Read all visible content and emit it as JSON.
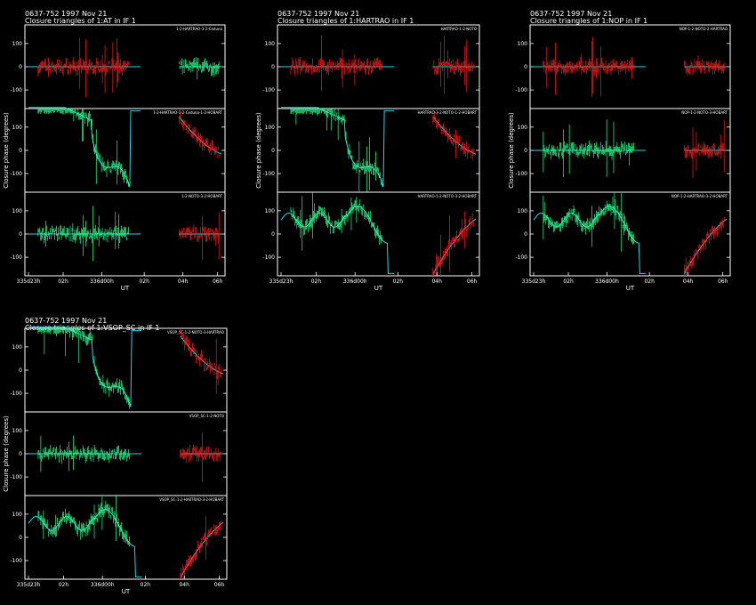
{
  "chart_data": [
    {
      "type": "scatter",
      "header_line1": "0637-752   1997 Nov 21",
      "header_line2": "Closure triangles of 1:AT in IF 1",
      "ylabel": "Closure phase   (degrees)",
      "xlabel": "UT",
      "ylim": [
        -180,
        180
      ],
      "yticks": [
        "100",
        "0",
        "-100"
      ],
      "xticks": [
        "335d23h",
        "02h",
        "336d00h",
        "02h",
        "04h",
        "06h"
      ],
      "panels": [
        {
          "label": "1-2-HARTRAO-3-2-Ceduna",
          "model": "flat",
          "level": 0,
          "region_a": "red",
          "region_b": "green"
        },
        {
          "label": "1-2-HARTRAO-3-2-Ceduna-1-2-HOBART",
          "model": "wave",
          "level": -40,
          "region_a": "green",
          "region_b": "red"
        },
        {
          "label": "1-2-NOTO-3-2-HOBART",
          "model": "flat",
          "level": 0,
          "region_a": "green",
          "region_b": "red"
        }
      ]
    },
    {
      "type": "scatter",
      "header_line1": "0637-752   1997 Nov 21",
      "header_line2": "Closure triangles of 1:HARTRAO in IF 1",
      "ylabel": "Closure phase   (degrees)",
      "xlabel": "UT",
      "ylim": [
        -180,
        180
      ],
      "yticks": [
        "100",
        "0",
        "-100"
      ],
      "xticks": [
        "335d23h",
        "02h",
        "336d00h",
        "02h",
        "04h",
        "06h"
      ],
      "panels": [
        {
          "label": "HARTRAO-1-2-NOTO",
          "model": "flat",
          "level": 0,
          "region_a": "red",
          "region_b": "red"
        },
        {
          "label": "HARTRAO-3-2-NOTO-1-2-HOBART",
          "model": "wave",
          "level": -40,
          "region_a": "green",
          "region_b": "red"
        },
        {
          "label": "HARTRAO-1-2-NOTO-3-2-HOBART",
          "model": "rising",
          "level": 100,
          "region_a": "green",
          "region_b": "red"
        }
      ]
    },
    {
      "type": "scatter",
      "header_line1": "0637-752   1997 Nov 21",
      "header_line2": "Closure triangles of 1:NOP in IF 1",
      "ylabel": "Closure phase   (degrees)",
      "xlabel": "UT",
      "ylim": [
        -180,
        180
      ],
      "yticks": [
        "100",
        "0",
        "-100"
      ],
      "xticks": [
        "335d23h",
        "02h",
        "336d00h",
        "02h",
        "04h",
        "06h"
      ],
      "panels": [
        {
          "label": "NOP-1-2-NOTO-2-HARTRAO",
          "model": "flat",
          "level": 0,
          "region_a": "red",
          "region_b": "red"
        },
        {
          "label": "NOP-1-2-NOTO-3-HOBART",
          "model": "flat",
          "level": 0,
          "region_a": "green",
          "region_b": "red"
        },
        {
          "label": "NOP-1-2-HARTRAO-3-2-HOBART",
          "model": "rising",
          "level": 100,
          "region_a": "green",
          "region_b": "red"
        }
      ]
    },
    {
      "type": "scatter",
      "header_line1": "0637-752   1997 Nov 21",
      "header_line2": "Closure triangles of 1:VSOP_SC in IF 1",
      "ylabel": "Closure phase   (degrees)",
      "xlabel": "UT",
      "ylim": [
        -180,
        180
      ],
      "yticks": [
        "100",
        "0",
        "-100"
      ],
      "xticks": [
        "335d23h",
        "02h",
        "336d00h",
        "02h",
        "04h",
        "06h"
      ],
      "panels": [
        {
          "label": "VSOP_SC-1-2-NOTO-3-HARTRAO",
          "model": "wave",
          "level": -40,
          "region_a": "green",
          "region_b": "red"
        },
        {
          "label": "VSOP_SC-1-2-NOTO",
          "model": "flat",
          "level": 0,
          "region_a": "green",
          "region_b": "red"
        },
        {
          "label": "VSOP_SC-1-2-HARTRAO-3-2-HOBART",
          "model": "rising",
          "level": 100,
          "region_a": "green",
          "region_b": "red"
        }
      ]
    }
  ]
}
